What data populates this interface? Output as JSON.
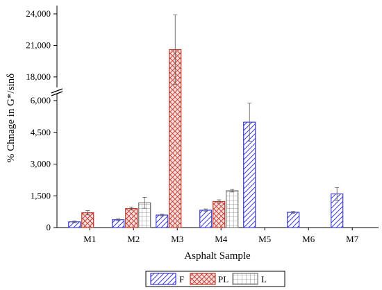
{
  "chart_data": {
    "type": "bar",
    "xlabel": "Asphalt Sample",
    "ylabel": "% Chnage in G*/sinδ",
    "categories": [
      "M1",
      "M2",
      "M3",
      "M4",
      "M5",
      "M6",
      "M7"
    ],
    "y_axis_break": [
      6000,
      17000
    ],
    "y_ticks_lower": [
      "0",
      "1,500",
      "3,000",
      "4,500",
      "6,000"
    ],
    "y_ticks_upper": [
      "18,000",
      "21,000",
      "24,000"
    ],
    "legend_placement": "bottom-center",
    "series": [
      {
        "name": "F",
        "color": "#3a3ad6",
        "pattern": "diagonal",
        "values": [
          270,
          370,
          590,
          820,
          4980,
          720,
          1590
        ],
        "errors": [
          40,
          40,
          40,
          60,
          900,
          40,
          300
        ]
      },
      {
        "name": "PL",
        "color": "#c0392b",
        "pattern": "crosshatch",
        "values": [
          700,
          900,
          20600,
          1230,
          null,
          null,
          null
        ],
        "errors": [
          100,
          70,
          3300,
          80,
          null,
          null,
          null
        ]
      },
      {
        "name": "L",
        "color": "#777777",
        "pattern": "grid",
        "values": [
          null,
          1170,
          null,
          1740,
          null,
          null,
          null
        ],
        "errors": [
          null,
          260,
          null,
          60,
          null,
          null,
          null
        ]
      }
    ]
  }
}
